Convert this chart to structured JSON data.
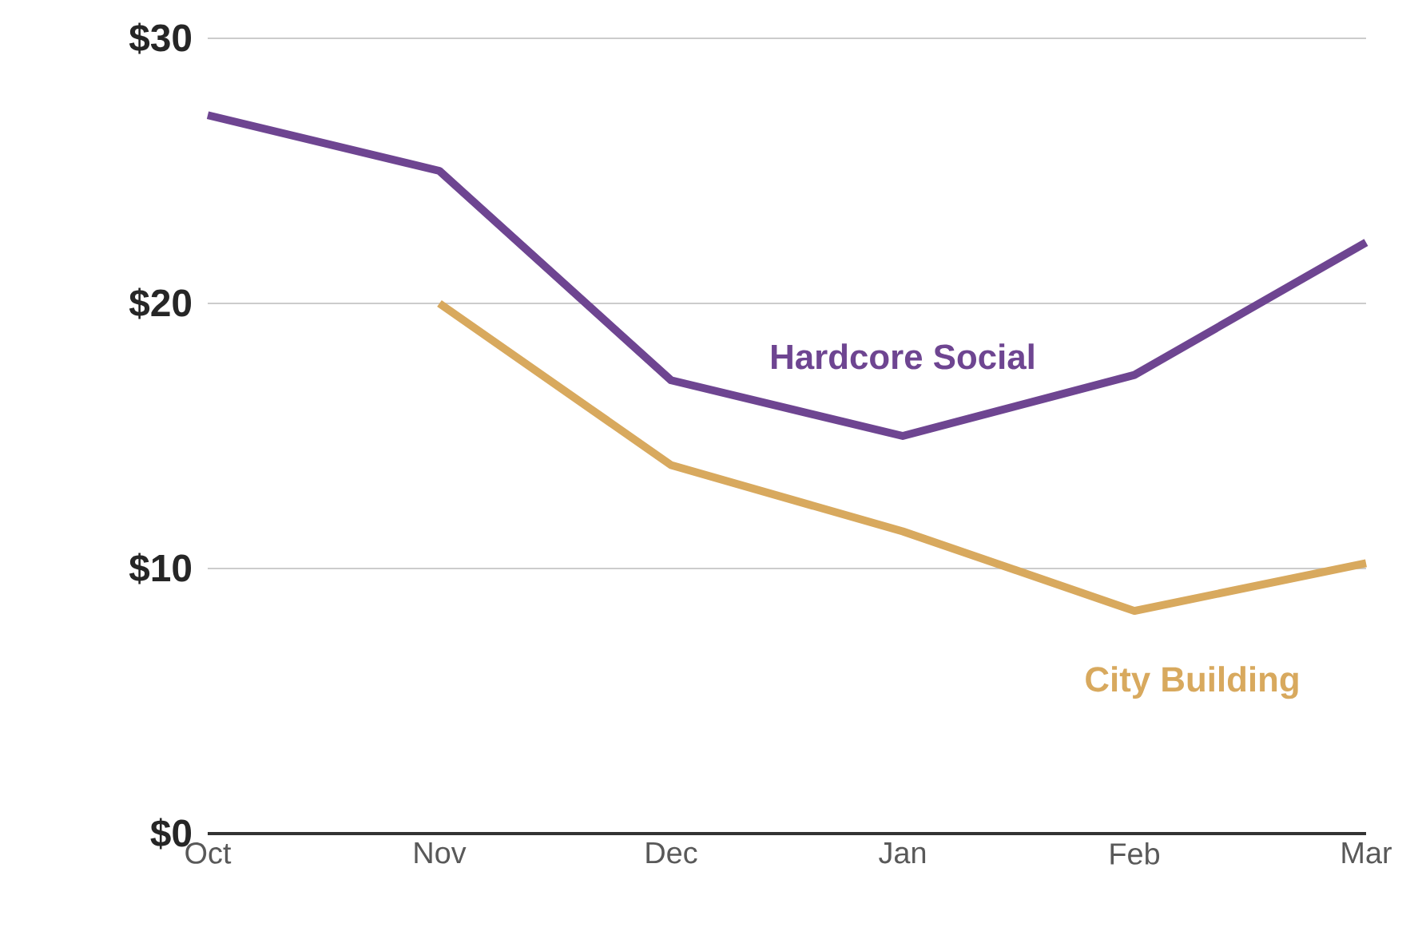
{
  "chart_data": {
    "type": "line",
    "categories": [
      "Oct",
      "Nov",
      "Dec",
      "Jan",
      "Feb",
      "Mar"
    ],
    "series": [
      {
        "name": "Hardcore Social",
        "color": "#6e4591",
        "values": [
          27.1,
          25.0,
          17.1,
          15.0,
          17.3,
          22.3
        ]
      },
      {
        "name": "City Building",
        "color": "#d8a95e",
        "values": [
          null,
          20.0,
          13.9,
          11.4,
          8.4,
          10.2
        ]
      }
    ],
    "ylim": [
      0,
      30
    ],
    "yticks": [
      {
        "value": 0,
        "label": "$0"
      },
      {
        "value": 10,
        "label": "$10"
      },
      {
        "value": 20,
        "label": "$20"
      },
      {
        "value": 30,
        "label": "$30"
      }
    ],
    "grid": "y",
    "marker": "none",
    "line_style": "solid"
  }
}
